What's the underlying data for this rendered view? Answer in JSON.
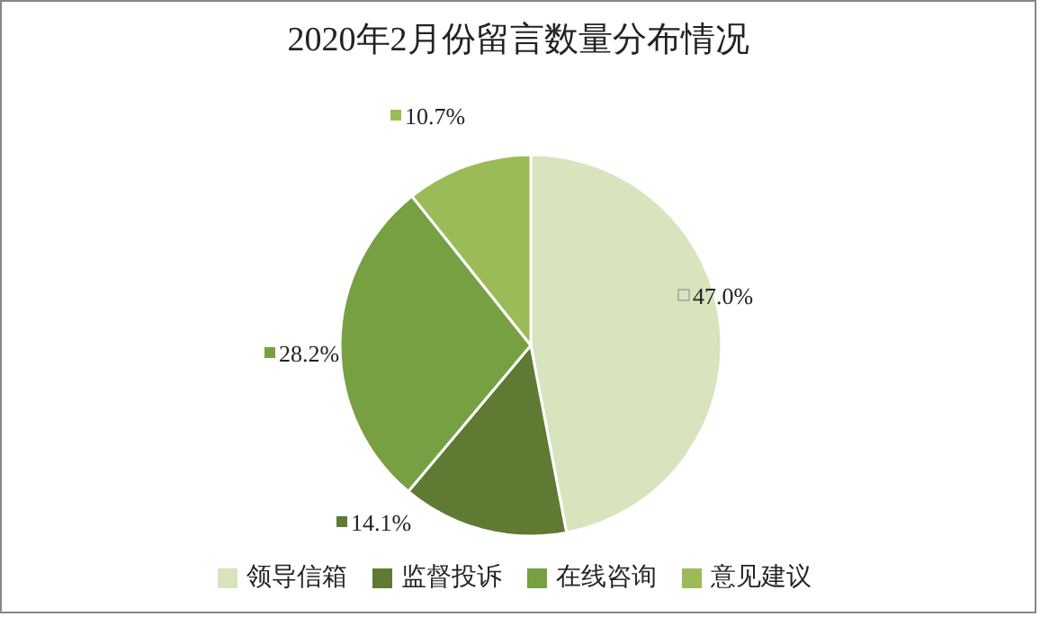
{
  "chart_data": {
    "type": "pie",
    "title": "2020年2月份留言数量分布情况",
    "categories": [
      "领导信箱",
      "监督投诉",
      "在线咨询",
      "意见建议"
    ],
    "values": [
      47.0,
      14.1,
      28.2,
      10.7
    ],
    "value_labels": [
      "47.0%",
      "14.1%",
      "28.2%",
      "10.7%"
    ],
    "colors": [
      "#d7e4bd",
      "#5f7a32",
      "#77a043",
      "#9bbb59"
    ],
    "legend": "bottom"
  }
}
